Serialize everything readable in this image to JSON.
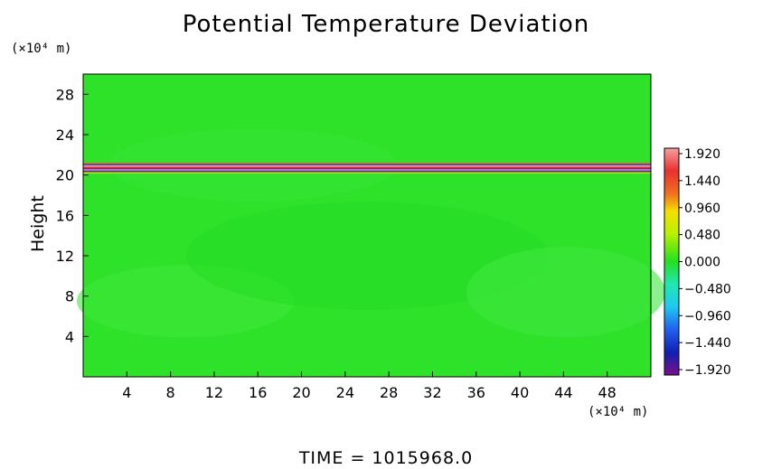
{
  "chart_data": {
    "type": "heatmap",
    "title": "Potential Temperature Deviation",
    "ylabel": "Height",
    "y_unit": "(×10⁴ m)",
    "x_unit": "(×10⁴ m)",
    "xlim": [
      0,
      52
    ],
    "ylim": [
      0,
      30
    ],
    "x_ticks": [
      "4",
      "8",
      "12",
      "16",
      "20",
      "24",
      "28",
      "32",
      "36",
      "40",
      "44",
      "48"
    ],
    "y_ticks": [
      "4",
      "8",
      "12",
      "16",
      "20",
      "24",
      "28"
    ],
    "colorbar": {
      "labels": [
        "1.920",
        "1.440",
        "0.960",
        "0.480",
        "0.000",
        "−0.480",
        "−0.960",
        "−1.440",
        "−1.920"
      ],
      "range": [
        -1.92,
        1.92
      ]
    },
    "features": [
      {
        "kind": "anomaly_band",
        "y_center": 20.7,
        "half_width": 0.6,
        "x_range": [
          0,
          52
        ],
        "value_range": [
          -1.92,
          1.92
        ]
      }
    ],
    "time_label": "TIME  =  1015968.0"
  }
}
